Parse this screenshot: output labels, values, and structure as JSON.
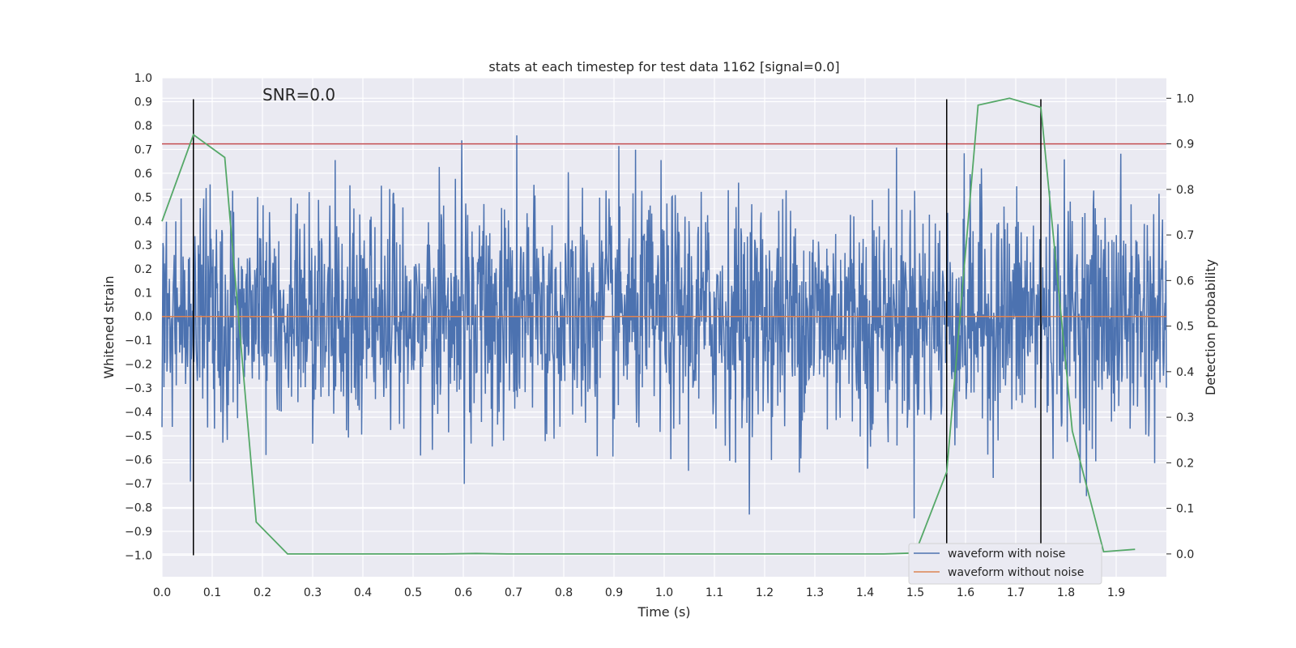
{
  "chart_data": {
    "type": "line",
    "title": "stats at each timestep for test data 1162 [signal=0.0]",
    "xlabel": "Time (s)",
    "ylabel": "Whitened strain",
    "y2label": "Detection probability",
    "annotation": "SNR=0.0",
    "xlim": [
      0.0,
      2.0
    ],
    "ylim": [
      -1.09,
      1.0
    ],
    "y2lim": [
      -0.05,
      1.045
    ],
    "x_ticks": [
      0.0,
      0.1,
      0.2,
      0.3,
      0.4,
      0.5,
      0.6,
      0.7,
      0.8,
      0.9,
      1.0,
      1.1,
      1.2,
      1.3,
      1.4,
      1.5,
      1.6,
      1.7,
      1.8,
      1.9
    ],
    "x_tick_labels": [
      "0.0",
      "0.1",
      "0.2",
      "0.3",
      "0.4",
      "0.5",
      "0.6",
      "0.7",
      "0.8",
      "0.9",
      "1.0",
      "1.1",
      "1.2",
      "1.3",
      "1.4",
      "1.5",
      "1.6",
      "1.7",
      "1.8",
      "1.9"
    ],
    "y_ticks": [
      1.0,
      0.9,
      0.8,
      0.7,
      0.6,
      0.5,
      0.4,
      0.3,
      0.2,
      0.1,
      0.0,
      -0.1,
      -0.2,
      -0.3,
      -0.4,
      -0.5,
      -0.6,
      -0.7,
      -0.8,
      -0.9,
      -1.0
    ],
    "y_tick_labels": [
      "1.0",
      "0.9",
      "0.8",
      "0.7",
      "0.6",
      "0.5",
      "0.4",
      "0.3",
      "0.2",
      "0.1",
      "0.0",
      "−0.1",
      "−0.2",
      "−0.3",
      "−0.4",
      "−0.5",
      "−0.6",
      "−0.7",
      "−0.8",
      "−0.9",
      "−1.0"
    ],
    "y2_ticks": [
      1.0,
      0.9,
      0.8,
      0.7,
      0.6,
      0.5,
      0.4,
      0.3,
      0.2,
      0.1,
      0.0
    ],
    "y2_tick_labels": [
      "1.0",
      "0.9",
      "0.8",
      "0.7",
      "0.6",
      "0.5",
      "0.4",
      "0.3",
      "0.2",
      "0.1",
      "0.0"
    ],
    "grid": true,
    "legend_position": "bottom-right",
    "series": [
      {
        "name": "waveform with noise",
        "color": "#4c72b0",
        "axis": "left",
        "x_range": [
          0.0,
          2.0
        ],
        "n_points": 2048,
        "amplitude_range": [
          -1.0,
          0.91
        ],
        "noise_std": 0.25
      },
      {
        "name": "waveform without noise",
        "color": "#dd8452",
        "axis": "left",
        "x": [
          0.0,
          2.0
        ],
        "y": [
          0.0,
          0.0
        ]
      },
      {
        "color": "#55a868",
        "axis": "right",
        "x": [
          0.0,
          0.0625,
          0.125,
          0.1875,
          0.25,
          0.3125,
          0.375,
          0.4375,
          0.5,
          0.5625,
          0.625,
          0.6875,
          0.75,
          0.8125,
          0.875,
          0.9375,
          1.0,
          1.0625,
          1.125,
          1.1875,
          1.25,
          1.3125,
          1.375,
          1.4375,
          1.5,
          1.5625,
          1.625,
          1.6875,
          1.75,
          1.8125,
          1.875,
          1.9375
        ],
        "y": [
          0.73,
          0.92,
          0.87,
          0.07,
          0.0,
          0.0,
          0.0,
          0.0,
          0.0,
          0.0,
          0.001,
          0.0,
          0.0,
          0.0,
          0.0,
          0.0,
          0.0,
          0.0,
          0.0,
          0.0,
          0.0,
          0.0,
          0.0,
          0.0,
          0.002,
          0.18,
          0.985,
          1.0,
          0.98,
          0.27,
          0.005,
          0.01
        ]
      }
    ],
    "threshold": {
      "value": 0.9,
      "axis": "right",
      "color": "#c44e52"
    },
    "vlines": {
      "x": [
        0.0625,
        1.5625,
        1.75
      ],
      "ymin": -1.0,
      "ymax": 0.91,
      "color": "#000000"
    }
  }
}
